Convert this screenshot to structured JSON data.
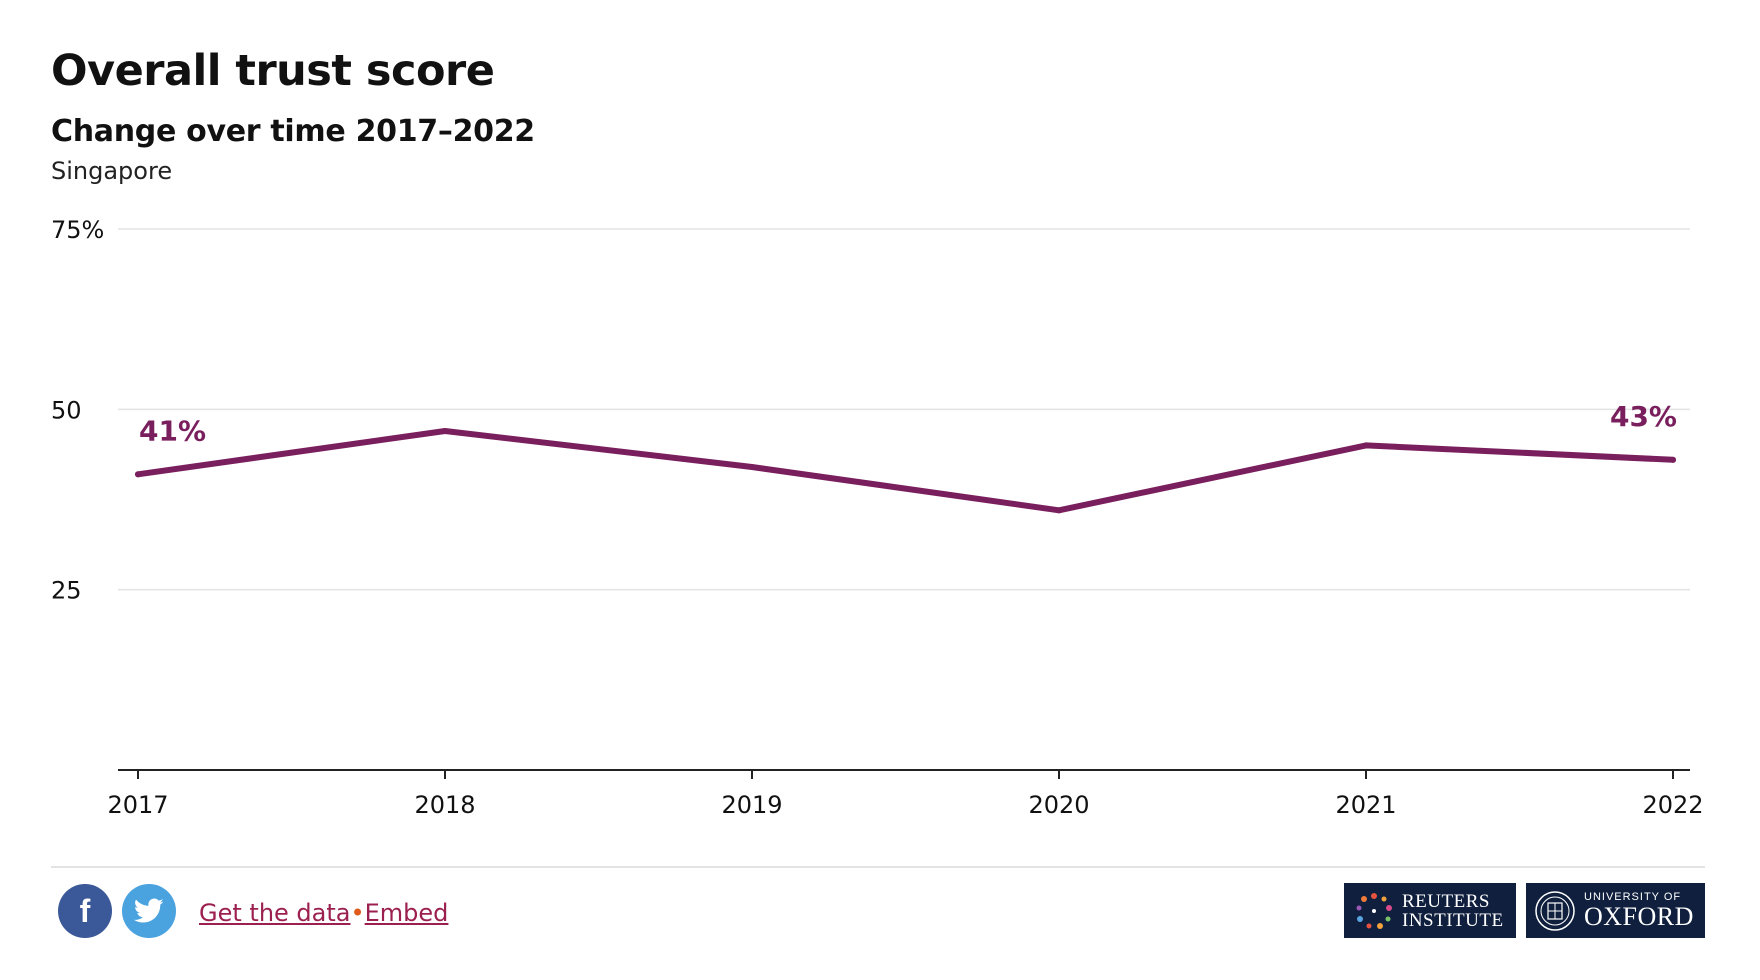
{
  "header": {
    "title": "Overall trust score",
    "subtitle": "Change over time 2017–2022",
    "location": "Singapore"
  },
  "footer": {
    "social": [
      {
        "name": "facebook-icon",
        "glyph": "f"
      },
      {
        "name": "twitter-icon"
      }
    ],
    "link_data": "Get the data",
    "separator": "•",
    "link_embed": "Embed",
    "logo_reuters": [
      "REUTERS",
      "INSTITUTE"
    ],
    "logo_oxford": [
      "UNIVERSITY OF",
      "OXFORD"
    ]
  },
  "colors": {
    "line": "#7a1f5e",
    "grid": "#e3e3e3",
    "axis": "#222222",
    "link": "#9b2050",
    "footer_logo_bg": "#0f1f3d"
  },
  "chart_data": {
    "type": "line",
    "title": "Overall trust score",
    "subtitle": "Change over time 2017–2022",
    "x": [
      "2017",
      "2018",
      "2019",
      "2020",
      "2021",
      "2022"
    ],
    "series": [
      {
        "values": [
          41,
          47,
          42,
          36,
          45,
          43
        ]
      }
    ],
    "ylim": [
      0,
      75
    ],
    "yticks": [
      25,
      50,
      75
    ],
    "ytick_labels": [
      "25",
      "50",
      "75%"
    ],
    "data_labels": [
      {
        "index": 0,
        "text": "41%"
      },
      {
        "index": 5,
        "text": "43%"
      }
    ],
    "grid": true
  }
}
